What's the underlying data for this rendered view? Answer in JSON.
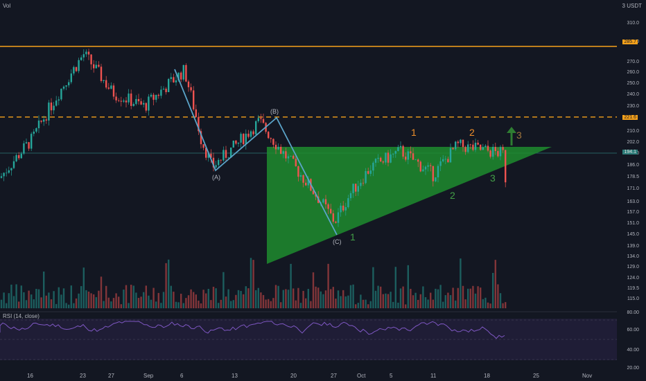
{
  "header": {
    "vol_label": "Vol",
    "currency_label": "3 USDT"
  },
  "rsi": {
    "label": "RSI (14, close)",
    "levels": [
      "80.00",
      "60.00",
      "40.00",
      "20.00"
    ]
  },
  "levels": {
    "upper_tag": "285.7",
    "mid_tag": "221.6",
    "current_tag": "194.1"
  },
  "colors": {
    "background": "#131722",
    "up": "#26a69a",
    "down": "#ef5350",
    "wave_line": "#5ba4c9",
    "triangle_fill": "#1e8c2e",
    "orange": "#f7a21b",
    "green_label": "#43a047",
    "orange_label": "#f0902b",
    "brown_label": "#a0753c",
    "rsi_line": "#7e57c2",
    "rsi_band": "#2a2347"
  },
  "chart_data": {
    "type": "candlestick",
    "y_axis_scale": "log",
    "y_ticks": [
      "310.0",
      "290.0",
      "270.0",
      "260.0",
      "250.0",
      "240.0",
      "230.0",
      "210.0",
      "202.0",
      "194.0",
      "186.0",
      "178.5",
      "171.0",
      "163.0",
      "157.0",
      "151.0",
      "145.0",
      "139.0",
      "134.0",
      "129.0",
      "124.0",
      "119.5",
      "115.0"
    ],
    "x_ticks": [
      "16",
      "23",
      "27",
      "Sep",
      "6",
      "13",
      "20",
      "27",
      "Oct",
      "5",
      "11",
      "18",
      "25",
      "Nov"
    ],
    "horizontal_levels": [
      285.7,
      221.6
    ],
    "wave_labels": {
      "corrective": [
        "(A)",
        "(B)",
        "(C)"
      ],
      "green": [
        "1",
        "2",
        "3"
      ],
      "orange": [
        "1",
        "2"
      ],
      "target": "3"
    },
    "approx_path": [
      {
        "x": "Aug 11",
        "close": 178
      },
      {
        "x": "Aug 16",
        "close": 205
      },
      {
        "x": "Aug 20",
        "close": 245
      },
      {
        "x": "Aug 23",
        "close": 278
      },
      {
        "x": "Aug 27",
        "close": 242
      },
      {
        "x": "Sep 1",
        "close": 230
      },
      {
        "x": "Sep 6",
        "close": 262
      },
      {
        "x": "Sep 9",
        "close": 205
      },
      {
        "x": "Sep 10",
        "close": 185
      },
      {
        "x": "Sep 13",
        "close": 200
      },
      {
        "x": "Sep 17",
        "close": 218
      },
      {
        "x": "Sep 20",
        "close": 196
      },
      {
        "x": "Sep 27",
        "close": 152
      },
      {
        "x": "Sep 30",
        "close": 168
      },
      {
        "x": "Oct 4",
        "close": 185
      },
      {
        "x": "Oct 8",
        "close": 196
      },
      {
        "x": "Oct 12",
        "close": 180
      },
      {
        "x": "Oct 15",
        "close": 200
      },
      {
        "x": "Oct 19",
        "close": 194
      }
    ]
  }
}
